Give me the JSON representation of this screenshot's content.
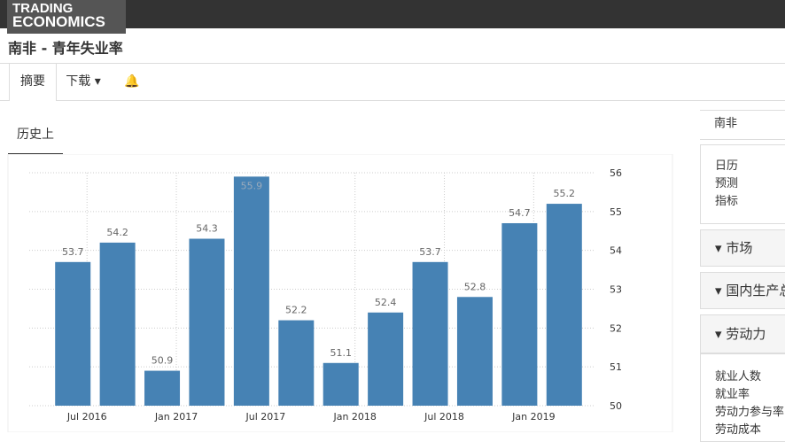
{
  "header": {
    "logo_line1": "TRADING",
    "logo_line2": "ECONOMICS"
  },
  "page_title": "南非 - 青年失业率",
  "tabs": [
    "摘要",
    "下载"
  ],
  "subtab": "历史上",
  "sidebar": {
    "country": "南非",
    "links": [
      "日历",
      "预测",
      "指标"
    ],
    "sections": [
      "市场",
      "国内生产总值",
      "劳动力"
    ],
    "labour_links": [
      "就业人数",
      "就业率",
      "劳动力参与率",
      "劳动成本"
    ]
  },
  "chart_data": {
    "type": "bar",
    "categories": [
      "Jul 2016",
      null,
      "Jan 2017",
      null,
      "Jul 2017",
      null,
      "Jan 2018",
      null,
      "Jul 2018",
      null,
      "Jan 2019",
      null
    ],
    "values": [
      53.7,
      54.2,
      50.9,
      54.3,
      55.9,
      52.2,
      51.1,
      52.4,
      53.7,
      52.8,
      54.7,
      55.2
    ],
    "color": "#4682b4",
    "ylim": [
      50,
      56
    ],
    "yticks": [
      50,
      51,
      52,
      53,
      54,
      55,
      56
    ],
    "grid": true
  }
}
